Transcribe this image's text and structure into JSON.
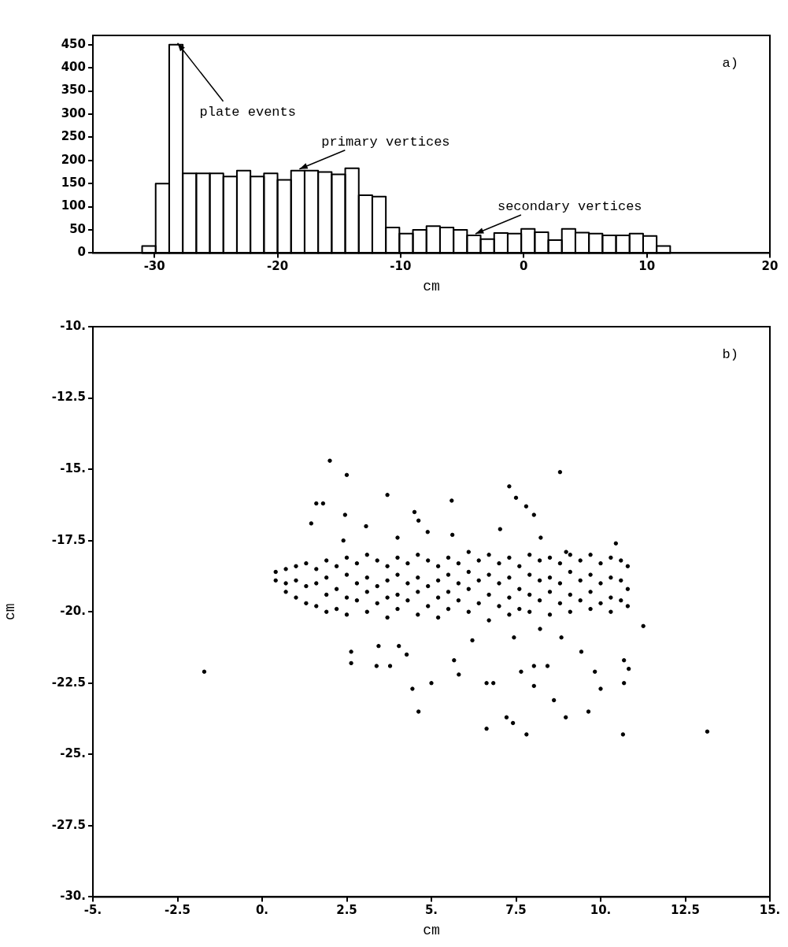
{
  "chart_data": [
    {
      "type": "histogram",
      "xlabel": "cm",
      "color": "#000000",
      "bins": [
        -31,
        -29.9,
        -28.8,
        -27.7,
        -26.6,
        -25.5,
        -24.4,
        -23.3,
        -22.2,
        -21.1,
        -20,
        -18.9,
        -17.8,
        -16.7,
        -15.6,
        -14.5,
        -13.4,
        -12.3,
        -11.2,
        -10.1,
        -9,
        -7.9,
        -6.8,
        -5.7,
        -4.6,
        -3.5,
        -2.4,
        -1.3,
        -0.2,
        0.9,
        2,
        3.1,
        4.2,
        5.3,
        6.4,
        7.5,
        8.6,
        9.7,
        10.8,
        11.9
      ],
      "values": [
        15,
        150,
        450,
        172,
        172,
        172,
        165,
        178,
        165,
        172,
        158,
        178,
        178,
        175,
        170,
        183,
        125,
        122,
        55,
        42,
        50,
        58,
        55,
        50,
        38,
        30,
        43,
        42,
        52,
        45,
        28,
        52,
        44,
        42,
        38,
        38,
        42,
        37,
        15
      ],
      "xlim": [
        -35,
        20
      ],
      "xticks": [
        -30,
        -20,
        -10,
        0,
        10,
        20
      ],
      "ylim": [
        0,
        470
      ],
      "yticks": [
        0,
        50,
        100,
        150,
        200,
        250,
        300,
        350,
        400,
        450
      ],
      "annotations": [
        "a)",
        {
          "text": "plate events",
          "x": -28.25,
          "y": 450
        },
        {
          "text": "primary vertices",
          "x": -18.35,
          "y": 178
        },
        {
          "text": "secondary vertices",
          "x": -4.05,
          "y": 38
        }
      ]
    },
    {
      "type": "scatter",
      "xlabel": "cm",
      "ylabel": "cm",
      "color": "#000000",
      "marker": "circle",
      "xlim": [
        -5,
        15
      ],
      "xticks": [
        {
          "value": -5,
          "label": "-5."
        },
        {
          "value": -2.5,
          "label": "-2.5"
        },
        {
          "value": 0,
          "label": "0."
        },
        {
          "value": 2.5,
          "label": "2.5"
        },
        {
          "value": 5,
          "label": "5."
        },
        {
          "value": 7.5,
          "label": "7.5"
        },
        {
          "value": 10,
          "label": "10."
        },
        {
          "value": 12.5,
          "label": "12.5"
        },
        {
          "value": 15,
          "label": "15."
        }
      ],
      "ylim": [
        -30,
        -10
      ],
      "yticks": [
        {
          "value": -10,
          "label": "-10."
        },
        {
          "value": -12.5,
          "label": "-12.5"
        },
        {
          "value": -15,
          "label": "-15."
        },
        {
          "value": -17.5,
          "label": "-17.5"
        },
        {
          "value": -20,
          "label": "-20."
        },
        {
          "value": -22.5,
          "label": "-22.5"
        },
        {
          "value": -25,
          "label": "-25."
        },
        {
          "value": -27.5,
          "label": "-27.5"
        },
        {
          "value": -30,
          "label": "-30."
        }
      ],
      "x": [
        0.4,
        0.4,
        0.7,
        0.7,
        0.7,
        1.0,
        1.0,
        1.0,
        1.3,
        1.3,
        1.3,
        1.6,
        1.6,
        1.6,
        1.9,
        1.9,
        1.9,
        1.9,
        2.2,
        2.2,
        2.2,
        2.5,
        2.5,
        2.5,
        2.5,
        2.8,
        2.8,
        2.8,
        3.1,
        3.1,
        3.1,
        3.1,
        3.4,
        3.4,
        3.4,
        3.7,
        3.7,
        3.7,
        3.7,
        4.0,
        4.0,
        4.0,
        4.0,
        4.3,
        4.3,
        4.3,
        4.6,
        4.6,
        4.6,
        4.6,
        4.9,
        4.9,
        4.9,
        5.2,
        5.2,
        5.2,
        5.2,
        5.5,
        5.5,
        5.5,
        5.5,
        5.8,
        5.8,
        5.8,
        6.1,
        6.1,
        6.1,
        6.1,
        6.4,
        6.4,
        6.4,
        6.7,
        6.7,
        6.7,
        6.7,
        7.0,
        7.0,
        7.0,
        7.3,
        7.3,
        7.3,
        7.3,
        7.6,
        7.6,
        7.6,
        7.9,
        7.9,
        7.9,
        7.9,
        8.2,
        8.2,
        8.2,
        8.5,
        8.5,
        8.5,
        8.5,
        8.8,
        8.8,
        8.8,
        9.1,
        9.1,
        9.1,
        9.1,
        9.4,
        9.4,
        9.4,
        9.7,
        9.7,
        9.7,
        9.7,
        10.0,
        10.0,
        10.0,
        10.3,
        10.3,
        10.3,
        10.3,
        10.6,
        10.6,
        10.6,
        10.8,
        10.8,
        10.8,
        2.0,
        2.5,
        1.6,
        1.8,
        3.7,
        4.5,
        5.6,
        7.3,
        7.5,
        7.8,
        8.8,
        1.45,
        2.45,
        2.4,
        3.07,
        4.0,
        4.62,
        4.89,
        5.62,
        7.03,
        8.03,
        8.23,
        8.98,
        10.45,
        -1.71,
        13.15,
        11.26,
        2.63,
        2.63,
        3.44,
        3.38,
        3.78,
        4.04,
        4.27,
        4.44,
        4.62,
        5.0,
        5.67,
        5.81,
        6.21,
        6.63,
        6.83,
        6.63,
        7.22,
        7.41,
        7.81,
        7.65,
        8.03,
        8.03,
        8.43,
        8.62,
        8.97,
        8.84,
        9.43,
        9.64,
        9.83,
        10.0,
        10.69,
        10.83,
        10.66,
        10.69,
        7.44,
        8.21
      ],
      "values": [
        -18.6,
        -18.9,
        -18.5,
        -19.0,
        -19.3,
        -18.4,
        -18.9,
        -19.5,
        -18.3,
        -19.1,
        -19.7,
        -18.5,
        -19.0,
        -19.8,
        -18.2,
        -18.8,
        -19.4,
        -20.0,
        -18.4,
        -19.2,
        -19.9,
        -18.1,
        -18.7,
        -19.5,
        -20.1,
        -18.3,
        -19.0,
        -19.6,
        -18.0,
        -18.8,
        -19.3,
        -20.0,
        -18.2,
        -19.1,
        -19.7,
        -18.4,
        -18.9,
        -19.5,
        -20.2,
        -18.1,
        -18.7,
        -19.4,
        -19.9,
        -18.3,
        -19.0,
        -19.6,
        -18.0,
        -18.8,
        -19.3,
        -20.1,
        -18.2,
        -19.1,
        -19.8,
        -18.4,
        -18.9,
        -19.5,
        -20.2,
        -18.1,
        -18.7,
        -19.3,
        -19.9,
        -18.3,
        -19.0,
        -19.6,
        -17.9,
        -18.6,
        -19.2,
        -20.0,
        -18.2,
        -18.9,
        -19.7,
        -18.0,
        -18.7,
        -19.4,
        -20.3,
        -18.3,
        -19.0,
        -19.8,
        -18.1,
        -18.8,
        -19.5,
        -20.1,
        -18.4,
        -19.2,
        -19.9,
        -18.0,
        -18.7,
        -19.4,
        -20.0,
        -18.2,
        -18.9,
        -19.6,
        -18.1,
        -18.8,
        -19.3,
        -20.1,
        -18.3,
        -19.0,
        -19.7,
        -18.0,
        -18.6,
        -19.4,
        -20.0,
        -18.2,
        -18.9,
        -19.6,
        -18.0,
        -18.7,
        -19.3,
        -19.9,
        -18.3,
        -19.0,
        -19.7,
        -18.1,
        -18.8,
        -19.5,
        -20.0,
        -18.2,
        -18.9,
        -19.6,
        -18.4,
        -19.2,
        -19.8,
        -14.7,
        -15.2,
        -16.2,
        -16.2,
        -15.9,
        -16.5,
        -16.1,
        -15.6,
        -16.0,
        -16.3,
        -15.1,
        -16.9,
        -16.6,
        -17.5,
        -17.0,
        -17.4,
        -16.8,
        -17.2,
        -17.3,
        -17.1,
        -16.6,
        -17.4,
        -17.9,
        -17.6,
        -22.1,
        -24.2,
        -20.5,
        -21.4,
        -21.8,
        -21.2,
        -21.9,
        -21.9,
        -21.2,
        -21.5,
        -22.7,
        -23.5,
        -22.5,
        -21.7,
        -22.2,
        -21.0,
        -22.5,
        -22.5,
        -24.1,
        -23.7,
        -23.9,
        -24.3,
        -22.1,
        -21.9,
        -22.6,
        -21.9,
        -23.1,
        -23.7,
        -20.9,
        -21.4,
        -23.5,
        -22.1,
        -22.7,
        -21.7,
        -22.0,
        -24.3,
        -22.5,
        -20.9,
        -20.6
      ],
      "annotations": [
        "b)"
      ]
    }
  ]
}
